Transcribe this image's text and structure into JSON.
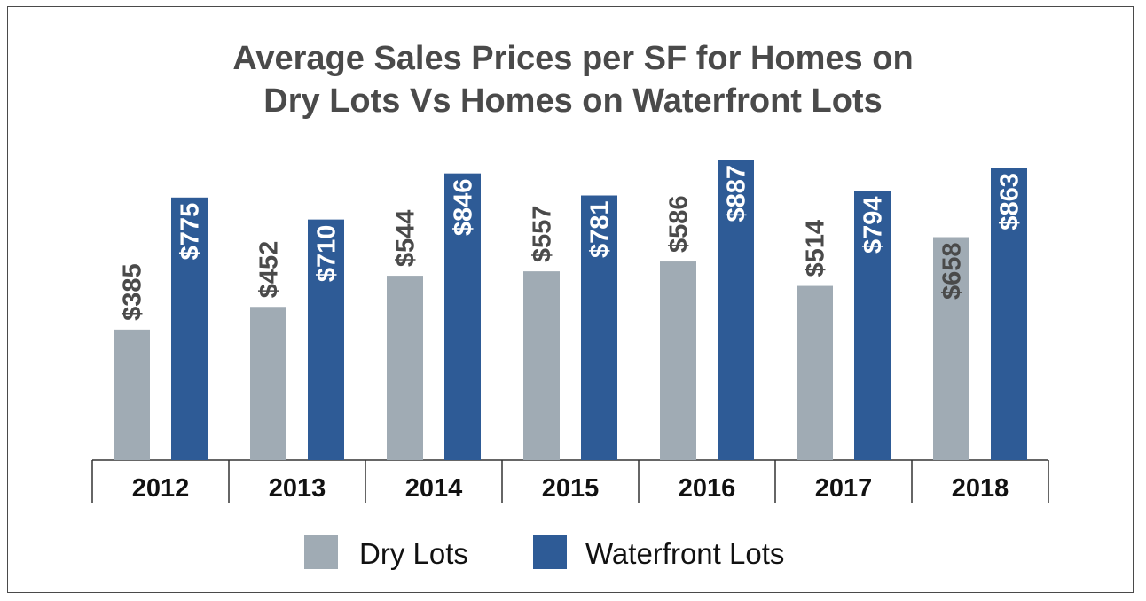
{
  "chart_data": {
    "type": "bar",
    "title_line1": "Average Sales Prices per SF for Homes on",
    "title_line2": "Dry Lots Vs Homes on Waterfront Lots",
    "categories": [
      "2012",
      "2013",
      "2014",
      "2015",
      "2016",
      "2017",
      "2018"
    ],
    "series": [
      {
        "name": "Dry Lots",
        "color": "#a0abb4",
        "label_color": "#4a4a4a",
        "values": [
          385,
          452,
          544,
          557,
          586,
          514,
          658
        ],
        "labels": [
          "$385",
          "$452",
          "$544",
          "$557",
          "$586",
          "$514",
          "$658"
        ]
      },
      {
        "name": "Waterfront Lots",
        "color": "#2e5b96",
        "label_color": "#ffffff",
        "values": [
          775,
          710,
          846,
          781,
          887,
          794,
          863
        ],
        "labels": [
          "$775",
          "$710",
          "$846",
          "$781",
          "$887",
          "$794",
          "$863"
        ]
      }
    ],
    "xlabel": "",
    "ylabel": "",
    "ylim": [
      0,
      887
    ],
    "grid": false,
    "legend": "bottom"
  }
}
